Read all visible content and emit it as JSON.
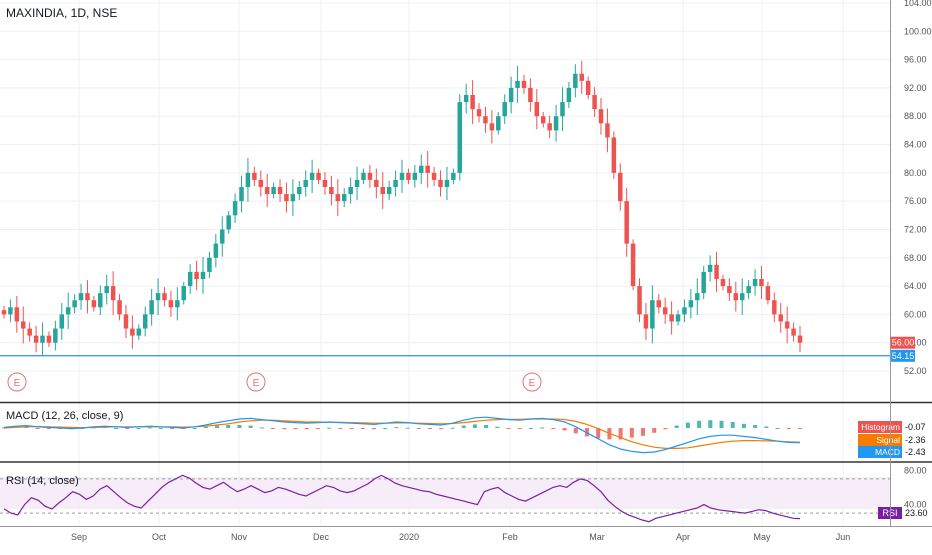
{
  "chart_data": [
    {
      "type": "candlestick",
      "title": "MAXINDIA, 1D, NSE",
      "x_labels": [
        "Sep",
        "Oct",
        "Nov",
        "Dec",
        "2020",
        "Feb",
        "Mar",
        "Apr",
        "May",
        "Jun"
      ],
      "ylim": [
        50,
        104
      ],
      "yticks": [
        "104.00",
        "100.00",
        "96.00",
        "92.00",
        "88.00",
        "84.00",
        "80.00",
        "76.00",
        "72.00",
        "68.00",
        "64.00",
        "60.00",
        "56.00",
        "52.00"
      ],
      "grid": true,
      "support_level": 54.15,
      "last_price": 56.0,
      "earnings_markers": [
        "E",
        "E",
        "E"
      ],
      "colors": {
        "up": "#26a69a",
        "down": "#ef5350",
        "support": "#2196f3"
      },
      "close_series": [
        60,
        61,
        59,
        58,
        57,
        56,
        57,
        56,
        58,
        60,
        61,
        62,
        63,
        62,
        61,
        63,
        64,
        62,
        60,
        58,
        57,
        58,
        60,
        62,
        63,
        62,
        61,
        62,
        64,
        66,
        65,
        66,
        68,
        70,
        72,
        74,
        76,
        78,
        80,
        79,
        78,
        77,
        78,
        77,
        76,
        77,
        78,
        79,
        80,
        79,
        78,
        77,
        76,
        77,
        78,
        79,
        80,
        79,
        78,
        77,
        78,
        79,
        80,
        79,
        80,
        81,
        80,
        79,
        78,
        79,
        80,
        90,
        91,
        89,
        88,
        87,
        86,
        88,
        90,
        92,
        93,
        92,
        90,
        88,
        87,
        86,
        88,
        90,
        92,
        94,
        93,
        91,
        89,
        87,
        85,
        80,
        76,
        70,
        64,
        60,
        58,
        62,
        61,
        60,
        59,
        60,
        61,
        62,
        63,
        66,
        67,
        65,
        64,
        63,
        62,
        63,
        64,
        65,
        64,
        62,
        60,
        59,
        58,
        57,
        56
      ],
      "price_labels": {
        "last": "56.00",
        "level": "54.15"
      }
    },
    {
      "type": "line",
      "title": "MACD (12, 26, close, 9)",
      "series": [
        {
          "name": "Histogram",
          "value": "-0.07",
          "color": "#ef5350"
        },
        {
          "name": "Signal",
          "value": "-2.36",
          "color": "#f57c00"
        },
        {
          "name": "MACD",
          "value": "-2.43",
          "color": "#2196f3"
        }
      ],
      "macd": [
        0.1,
        0.3,
        0.4,
        0.2,
        0.1,
        0.0,
        -0.1,
        0.0,
        0.2,
        0.3,
        0.2,
        0.1,
        0.2,
        0.3,
        0.2,
        0.1,
        0.0,
        0.2,
        0.5,
        0.9,
        1.2,
        1.5,
        1.6,
        1.4,
        1.2,
        1.0,
        0.9,
        0.8,
        0.9,
        1.0,
        0.9,
        0.8,
        0.7,
        0.6,
        0.8,
        1.0,
        0.9,
        0.7,
        0.6,
        0.5,
        0.8,
        1.3,
        1.7,
        1.8,
        1.6,
        1.4,
        1.3,
        1.5,
        1.6,
        1.4,
        1.0,
        0.2,
        -0.8,
        -1.8,
        -2.8,
        -3.5,
        -3.9,
        -4.1,
        -4.0,
        -3.6,
        -3.0,
        -2.4,
        -1.8,
        -1.4,
        -1.2,
        -1.2,
        -1.4,
        -1.6,
        -1.9,
        -2.2,
        -2.4,
        -2.43
      ],
      "signal": [
        0.0,
        0.1,
        0.2,
        0.25,
        0.2,
        0.15,
        0.1,
        0.05,
        0.1,
        0.15,
        0.2,
        0.2,
        0.2,
        0.2,
        0.2,
        0.2,
        0.15,
        0.2,
        0.3,
        0.5,
        0.7,
        1.0,
        1.2,
        1.3,
        1.3,
        1.2,
        1.1,
        1.0,
        1.0,
        0.95,
        0.95,
        0.9,
        0.85,
        0.8,
        0.8,
        0.85,
        0.85,
        0.8,
        0.75,
        0.7,
        0.75,
        0.9,
        1.1,
        1.3,
        1.4,
        1.45,
        1.45,
        1.5,
        1.5,
        1.5,
        1.4,
        1.1,
        0.6,
        -0.1,
        -0.9,
        -1.6,
        -2.3,
        -2.8,
        -3.2,
        -3.4,
        -3.4,
        -3.3,
        -3.0,
        -2.7,
        -2.4,
        -2.2,
        -2.1,
        -2.1,
        -2.15,
        -2.2,
        -2.3,
        -2.36
      ]
    },
    {
      "type": "line",
      "title": "RSI (14, close)",
      "yticks": [
        "80.00",
        "40.00"
      ],
      "band": [
        70,
        30
      ],
      "series": [
        {
          "name": "RSI",
          "value": "23.60",
          "color": "#7b1fa2"
        }
      ],
      "values": [
        35,
        30,
        28,
        40,
        48,
        45,
        38,
        35,
        42,
        48,
        55,
        52,
        46,
        50,
        58,
        62,
        55,
        48,
        42,
        38,
        36,
        44,
        52,
        60,
        66,
        70,
        74,
        71,
        65,
        60,
        58,
        62,
        66,
        60,
        55,
        58,
        62,
        58,
        54,
        56,
        60,
        58,
        55,
        52,
        50,
        54,
        58,
        62,
        60,
        56,
        54,
        56,
        60,
        64,
        70,
        74,
        70,
        65,
        62,
        60,
        58,
        56,
        55,
        52,
        50,
        48,
        46,
        44,
        42,
        40,
        55,
        58,
        60,
        54,
        50,
        46,
        44,
        48,
        52,
        56,
        60,
        62,
        60,
        66,
        70,
        68,
        62,
        55,
        45,
        38,
        32,
        28,
        25,
        22,
        20,
        24,
        26,
        28,
        30,
        32,
        34,
        36,
        40,
        36,
        34,
        33,
        32,
        31,
        30,
        32,
        34,
        33,
        30,
        28,
        26,
        24,
        23.6
      ]
    }
  ]
}
